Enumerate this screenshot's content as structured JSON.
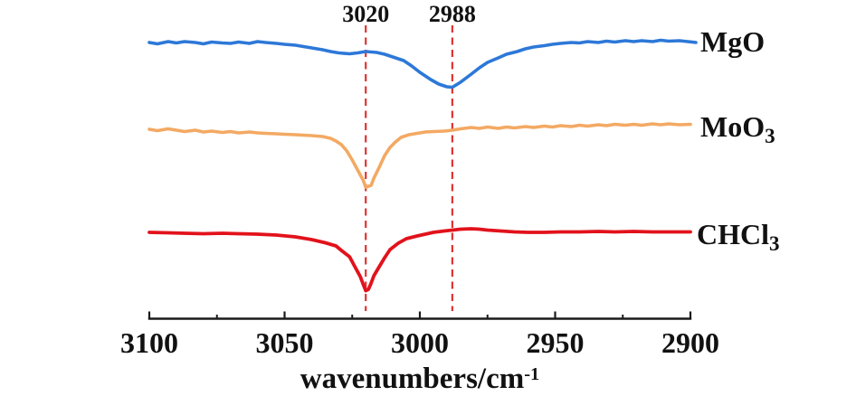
{
  "figure": {
    "background": "#ffffff"
  },
  "colors": {
    "dashed_marker": "#de3434",
    "axis": "#1a1a1a",
    "text": "#111111"
  },
  "chart_data": {
    "type": "line",
    "title": "",
    "xlabel": "wavenumbers/cm-1",
    "xlabel_main": "wavenumbers/cm",
    "xlabel_sup": "-1",
    "ylabel": "",
    "y_units": "arbitrary intensity (curves offset-stacked; values in screen px, smaller = higher)",
    "x_axis_reversed": true,
    "x_range": [
      3100,
      2900
    ],
    "x_major_ticks": [
      3100,
      3050,
      3000,
      2950,
      2900
    ],
    "x_tick_labels": [
      "3100",
      "3050",
      "3000",
      "2950",
      "2900"
    ],
    "x_minor_ticks": [
      3075,
      3025,
      2975,
      2925
    ],
    "grid": false,
    "legend_position": "right of each curve",
    "annotations": [
      {
        "label": "3020",
        "wavenumber": 3020
      },
      {
        "label": "2988",
        "wavenumber": 2988
      }
    ],
    "series": [
      {
        "name": "MgO",
        "label_main": "MgO",
        "label_sub": "",
        "color": "#2d78d8",
        "stroke_width": 3.6,
        "dip_wavenumber": 2988,
        "x": [
          3100,
          3097,
          3093,
          3090,
          3087,
          3083,
          3080,
          3077,
          3073,
          3070,
          3067,
          3063,
          3060,
          3057,
          3053,
          3050,
          3046,
          3043,
          3040,
          3036,
          3033,
          3030,
          3026,
          3023,
          3020,
          3016,
          3013,
          3010,
          3006,
          3003,
          3000,
          2996,
          2993,
          2990,
          2988,
          2985,
          2981,
          2978,
          2975,
          2971,
          2968,
          2964,
          2961,
          2958,
          2954,
          2951,
          2948,
          2944,
          2941,
          2938,
          2934,
          2931,
          2928,
          2924,
          2921,
          2918,
          2914,
          2911,
          2908,
          2904,
          2901,
          2898
        ],
        "y": [
          47,
          48.5,
          46,
          47.5,
          46,
          47,
          48.5,
          46.5,
          47.5,
          48,
          46.5,
          48,
          46,
          47,
          48,
          49,
          50,
          51.5,
          53,
          55,
          57,
          58.5,
          59.5,
          58.5,
          57,
          58,
          60,
          63,
          67,
          73,
          80,
          88,
          93,
          96,
          96.5,
          91,
          82,
          75,
          69,
          64,
          60,
          57,
          54,
          52,
          50.5,
          49,
          48,
          47,
          47.5,
          46,
          47,
          45.5,
          46.5,
          45,
          46,
          45,
          46,
          44.5,
          45.5,
          45,
          46,
          47
        ]
      },
      {
        "name": "MoO3",
        "label_main": "MoO",
        "label_sub": "3",
        "color": "#f3a963",
        "stroke_width": 3.6,
        "dip_wavenumber": 3020,
        "x": [
          3100,
          3097,
          3093,
          3090,
          3087,
          3083,
          3080,
          3077,
          3073,
          3070,
          3067,
          3063,
          3060,
          3057,
          3053,
          3050,
          3046,
          3043,
          3040,
          3036,
          3033,
          3031,
          3029,
          3027,
          3025,
          3023,
          3021,
          3020,
          3018,
          3017,
          3015,
          3013,
          3011,
          3009,
          3007,
          3004,
          3001,
          2998,
          2995,
          2991,
          2988,
          2985,
          2981,
          2978,
          2975,
          2971,
          2968,
          2965,
          2961,
          2958,
          2954,
          2951,
          2948,
          2944,
          2941,
          2938,
          2934,
          2931,
          2928,
          2924,
          2921,
          2918,
          2914,
          2911,
          2908,
          2904,
          2900
        ],
        "y": [
          143,
          144.5,
          142.5,
          144,
          145.5,
          144,
          146,
          145,
          146.5,
          145.5,
          147,
          146,
          147,
          147.5,
          148,
          148.5,
          149,
          149.5,
          150,
          151,
          153,
          156,
          160,
          167,
          177,
          188,
          199,
          207,
          205,
          197,
          185,
          172,
          163,
          157,
          152,
          149,
          147.5,
          146,
          145.5,
          145,
          144,
          142.5,
          141,
          142,
          140.5,
          142,
          140.5,
          141.5,
          140,
          141,
          139.5,
          140.5,
          139,
          140,
          138.5,
          139.5,
          138,
          139,
          137.5,
          138.5,
          137.5,
          138.5,
          137,
          138,
          137,
          138,
          137.5
        ]
      },
      {
        "name": "CHCl3",
        "label_main": "CHCl",
        "label_sub": "3",
        "color": "#e2121b",
        "stroke_width": 3.8,
        "dip_wavenumber": 3020,
        "x": [
          3100,
          3093,
          3087,
          3080,
          3073,
          3067,
          3060,
          3053,
          3046,
          3040,
          3035,
          3031,
          3029,
          3026,
          3024,
          3022,
          3021,
          3020,
          3019,
          3018,
          3017,
          3015,
          3013,
          3011,
          3008,
          3005,
          3001,
          2998,
          2995,
          2991,
          2988,
          2985,
          2981,
          2978,
          2975,
          2970,
          2965,
          2960,
          2954,
          2948,
          2941,
          2934,
          2928,
          2921,
          2914,
          2908,
          2900
        ],
        "y": [
          257,
          257.5,
          258,
          258.5,
          258,
          258.5,
          259,
          260,
          262,
          265,
          268.5,
          272,
          277,
          284,
          295,
          306,
          314,
          321.5,
          320,
          313,
          305,
          295,
          285,
          276,
          269,
          264,
          261,
          259,
          257,
          255.5,
          254.5,
          253.5,
          253,
          253.5,
          254.5,
          255.5,
          256.5,
          257,
          257,
          256.5,
          256.5,
          256,
          256.5,
          256,
          256.5,
          256.5,
          256.5
        ]
      }
    ]
  }
}
